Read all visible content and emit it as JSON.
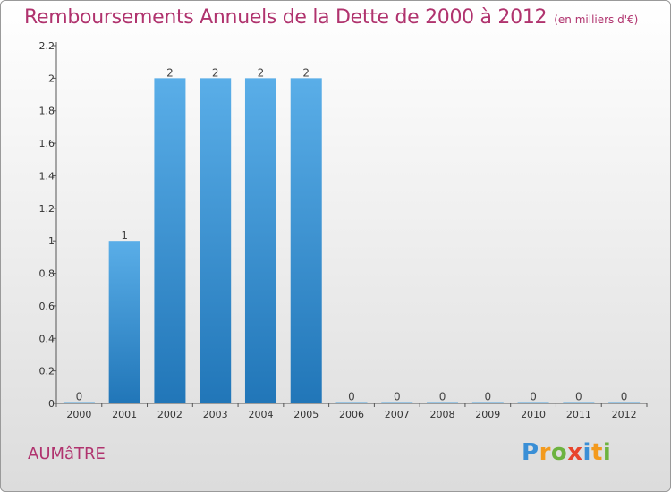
{
  "header": {
    "title": "Remboursements Annuels de la Dette de 2000 à 2012",
    "subtitle": "(en milliers d'€)"
  },
  "footer": {
    "town": "AUMâTRE",
    "logo": {
      "letters": [
        "P",
        "r",
        "o",
        "x",
        "i",
        "t",
        "i"
      ],
      "colors": [
        "#3a8fd6",
        "#f39a1d",
        "#6db33f",
        "#e8452c",
        "#3a8fd6",
        "#f39a1d",
        "#6db33f"
      ]
    }
  },
  "chart_data": {
    "type": "bar",
    "categories": [
      "2000",
      "2001",
      "2002",
      "2003",
      "2004",
      "2005",
      "2006",
      "2007",
      "2008",
      "2009",
      "2010",
      "2011",
      "2012"
    ],
    "values": [
      0,
      1,
      2,
      2,
      2,
      2,
      0,
      0,
      0,
      0,
      0,
      0,
      0
    ],
    "data_labels": [
      "0",
      "1",
      "2",
      "2",
      "2",
      "2",
      "0",
      "0",
      "0",
      "0",
      "0",
      "0",
      "0"
    ],
    "title": "Remboursements Annuels de la Dette de 2000 à 2012",
    "ylim": [
      0,
      2.2
    ],
    "yticks": [
      0,
      0.2,
      0.4,
      0.6,
      0.8,
      1,
      1.2,
      1.4,
      1.6,
      1.8,
      2,
      2.2
    ],
    "ytick_labels": [
      "0",
      "0.2",
      "0.4",
      "0.6",
      "0.8",
      "1",
      "1.2",
      "1.4",
      "1.6",
      "1.8",
      "2",
      "2.2"
    ],
    "grid": false,
    "bar_color_top": "#5aaee8",
    "bar_color_bottom": "#2176b8"
  }
}
